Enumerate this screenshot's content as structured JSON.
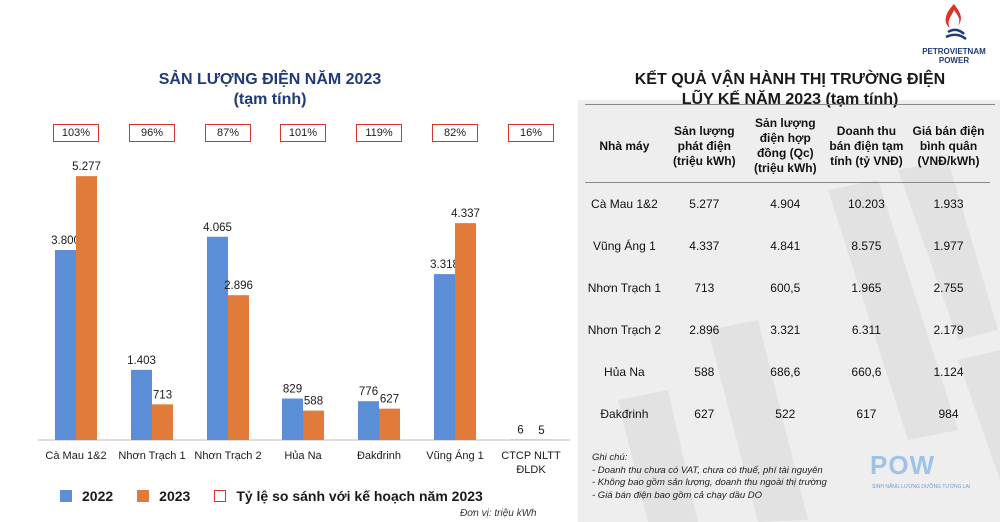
{
  "chart": {
    "title_line1": "SẢN LƯỢNG ĐIỆN NĂM 2023",
    "title_line2": "(tạm tính)",
    "unit_note": "Đơn vị: triệu kWh",
    "legend": {
      "series_2022": "2022",
      "series_2023": "2023",
      "ratio": "Tỷ lệ so sánh với kế hoạch năm 2023"
    }
  },
  "chart_data": {
    "type": "bar",
    "categories": [
      "Cà Mau 1&2",
      "Nhơn Trạch 1",
      "Nhơn Trạch 2",
      "Hủa Na",
      "Đakđrinh",
      "Vũng Áng 1",
      "CTCP NLTT ĐLDK"
    ],
    "series": [
      {
        "name": "2022",
        "values": [
          3800,
          1403,
          4065,
          829,
          776,
          3318,
          6
        ],
        "labels": [
          "3.800",
          "1.403",
          "4.065",
          "829",
          "776",
          "3.318",
          "6"
        ]
      },
      {
        "name": "2023",
        "values": [
          5277,
          713,
          2896,
          588,
          627,
          4337,
          5
        ],
        "labels": [
          "5.277",
          "713",
          "2.896",
          "588",
          "627",
          "4.337",
          "5"
        ]
      }
    ],
    "ratios": [
      "103%",
      "96%",
      "87%",
      "101%",
      "119%",
      "82%",
      "16%"
    ],
    "ylim": [
      0,
      5500
    ],
    "colors": {
      "series_2022": "#5b8ed6",
      "series_2023": "#e07b3a",
      "ratio_border": "#d9342b"
    },
    "legend_position": "bottom"
  },
  "table": {
    "title_line1": "KẾT QUẢ VẬN HÀNH THỊ TRƯỜNG ĐIỆN",
    "title_line2": "LŨY KẾ NĂM 2023 (tạm tính)",
    "headers": [
      "Nhà máy",
      "Sản lượng phát điện (triệu kWh)",
      "Sản lượng điện hợp đồng (Qc) (triệu kWh)",
      "Doanh thu bán điện tạm tính (tỷ VNĐ)",
      "Giá bán điện bình quân (VNĐ/kWh)"
    ],
    "rows": [
      [
        "Cà Mau 1&2",
        "5.277",
        "4.904",
        "10.203",
        "1.933"
      ],
      [
        "Vũng Áng 1",
        "4.337",
        "4.841",
        "8.575",
        "1.977"
      ],
      [
        "Nhơn Trạch 1",
        "713",
        "600,5",
        "1.965",
        "2.755"
      ],
      [
        "Nhơn Trạch 2",
        "2.896",
        "3.321",
        "6.311",
        "2.179"
      ],
      [
        "Hủa Na",
        "588",
        "686,6",
        "660,6",
        "1.124"
      ],
      [
        "Đakđrinh",
        "627",
        "522",
        "617",
        "984"
      ]
    ],
    "notes": {
      "title": "Ghi chú:",
      "items": [
        "- Doanh thu chưa có VAT, chưa có thuế, phí tài nguyên",
        "- Không bao gồm sản lượng, doanh thu ngoài thị trường",
        "- Giá bán điện bao gồm cả chạy dầu DO"
      ]
    }
  },
  "logo": {
    "brand_line1": "PETROVIETNAM",
    "brand_line2": "POWER",
    "pow": "POW",
    "pow_tagline": "SINH NĂNG LƯỢNG DƯỠNG TƯƠNG LAI"
  }
}
